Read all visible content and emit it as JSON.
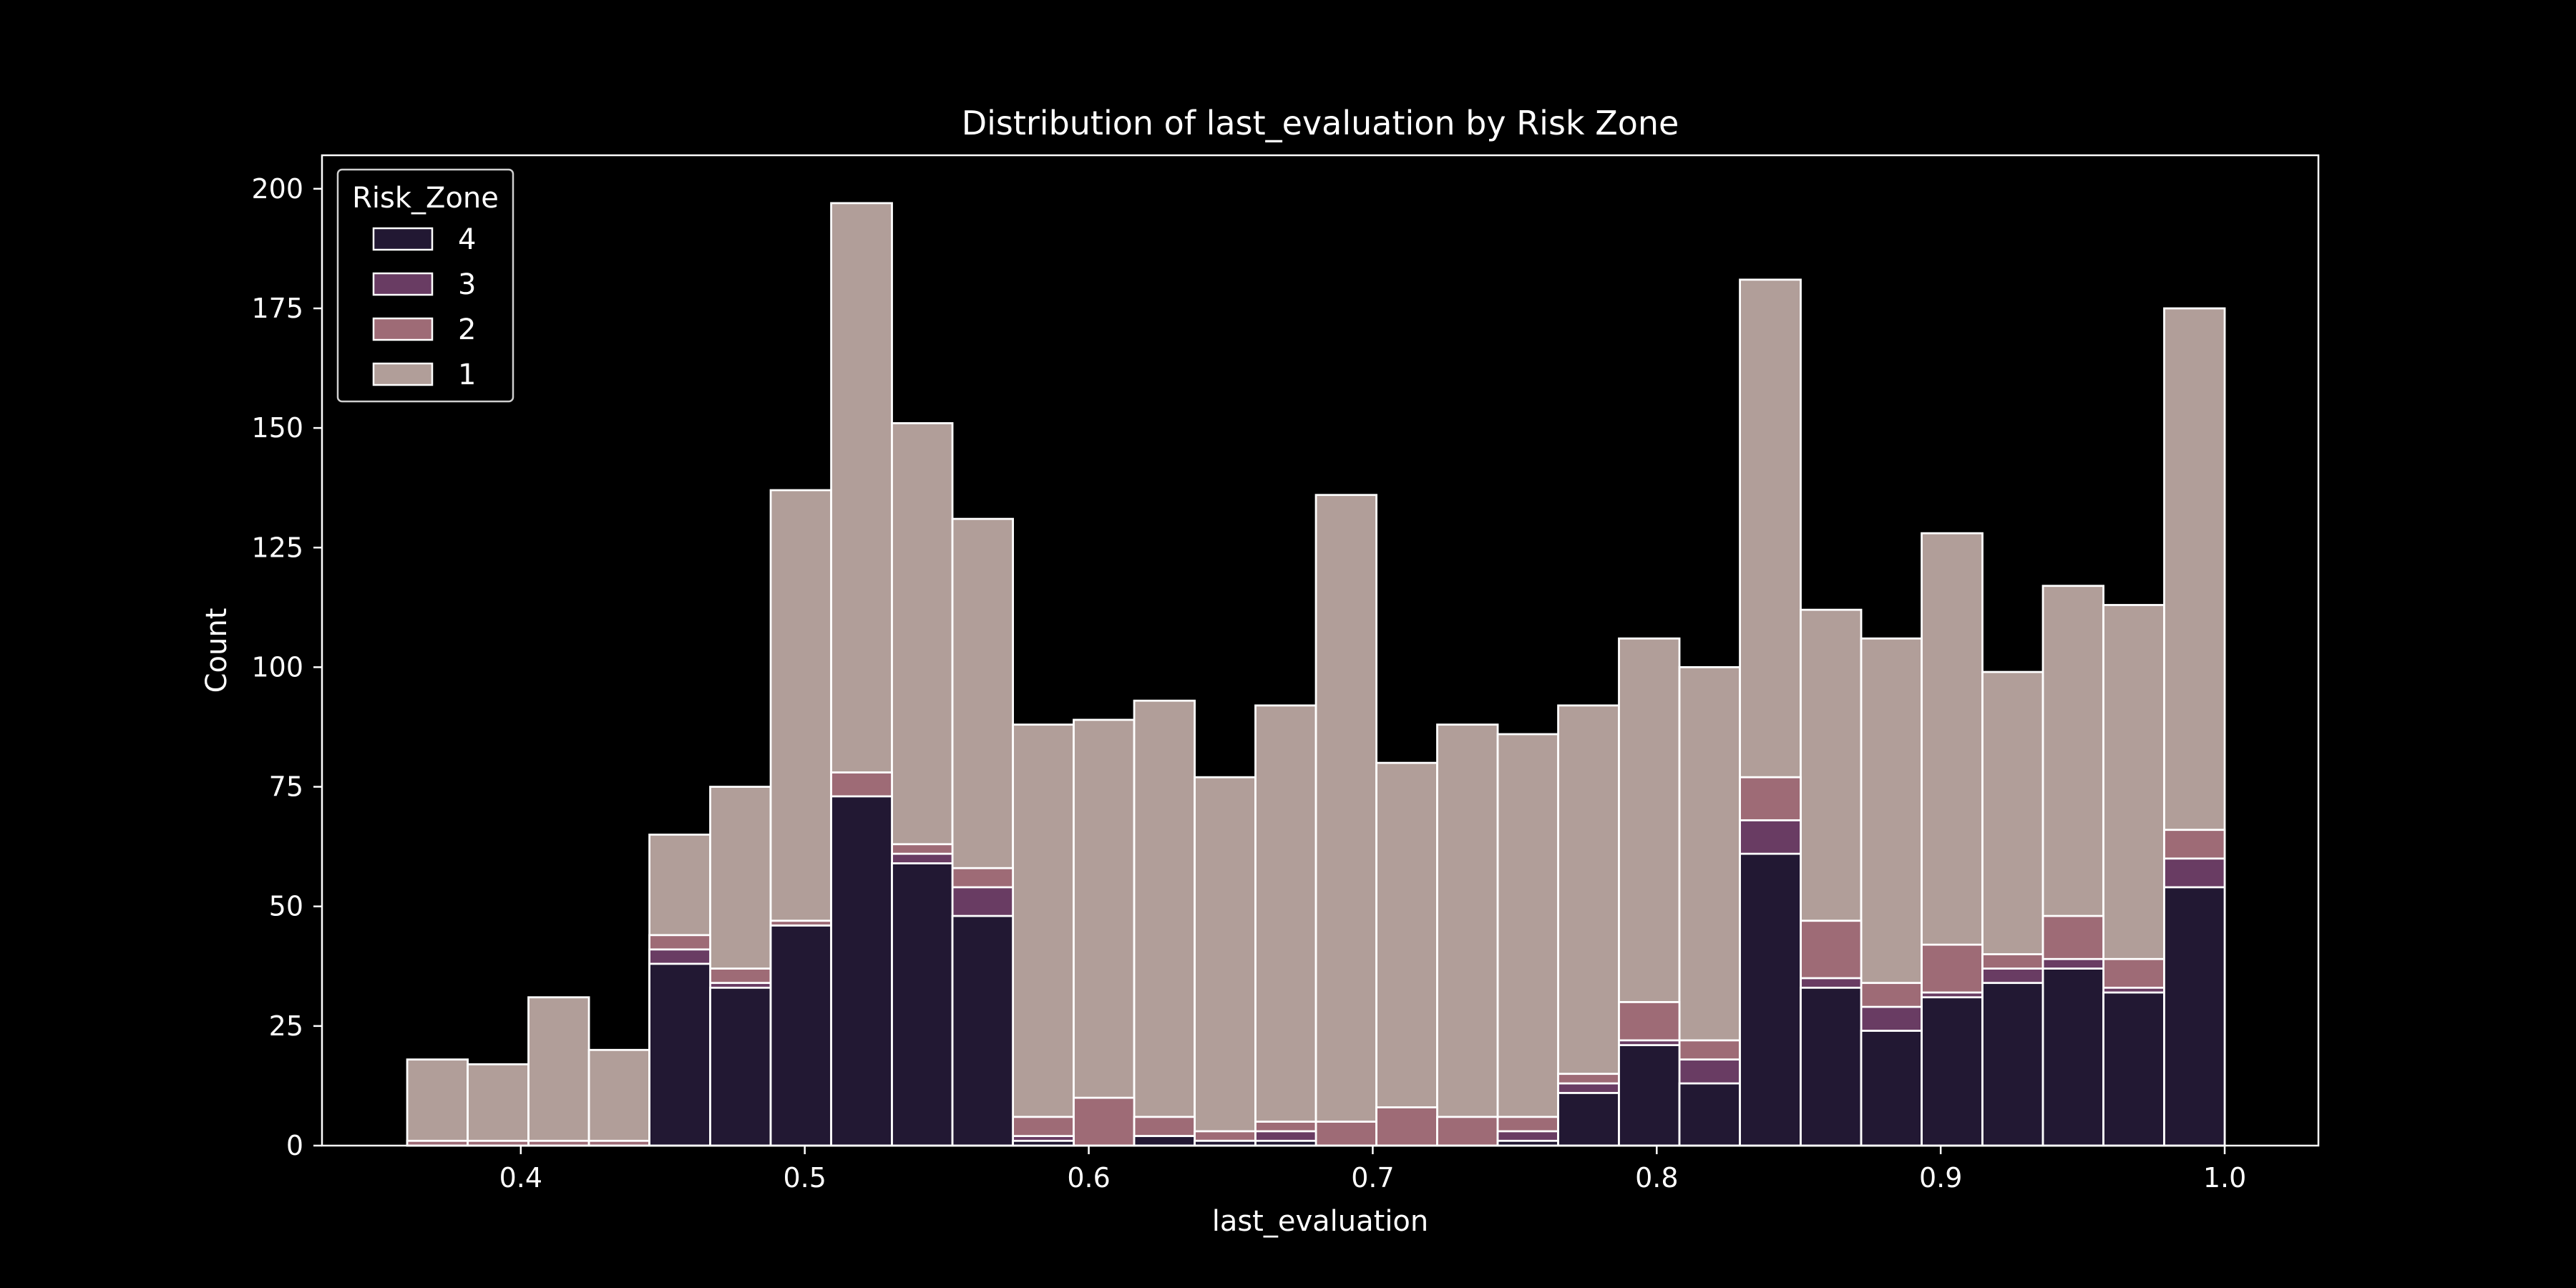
{
  "chart_data": {
    "type": "bar",
    "stacked": true,
    "title": "Distribution of last_evaluation by Risk Zone",
    "xlabel": "last_evaluation",
    "ylabel": "Count",
    "xlim": [
      0.33,
      1.033
    ],
    "ylim": [
      0,
      207
    ],
    "xticks": [
      0.4,
      0.5,
      0.6,
      0.7,
      0.8,
      0.9,
      1.0
    ],
    "xtick_labels": [
      "0.4",
      "0.5",
      "0.6",
      "0.7",
      "0.8",
      "0.9",
      "1.0"
    ],
    "yticks": [
      0,
      25,
      50,
      75,
      100,
      125,
      150,
      175,
      200
    ],
    "ytick_labels": [
      "0",
      "25",
      "50",
      "75",
      "100",
      "125",
      "150",
      "175",
      "200"
    ],
    "grid": false,
    "legend": {
      "title": "Risk_Zone",
      "position": "top-left"
    },
    "bin_edges": [
      0.36,
      0.3813,
      0.4027,
      0.424,
      0.4453,
      0.4667,
      0.488,
      0.5093,
      0.5307,
      0.552,
      0.5733,
      0.5947,
      0.616,
      0.6373,
      0.6587,
      0.68,
      0.7013,
      0.7227,
      0.744,
      0.7653,
      0.7867,
      0.808,
      0.8293,
      0.8507,
      0.872,
      0.8933,
      0.9147,
      0.936,
      0.9573,
      0.9787,
      1.0
    ],
    "series": [
      {
        "name": "4",
        "color": "#221833",
        "values": [
          0,
          0,
          0,
          0,
          38,
          33,
          46,
          73,
          59,
          48,
          1,
          0,
          2,
          1,
          1,
          0,
          0,
          0,
          1,
          11,
          21,
          13,
          61,
          33,
          24,
          31,
          34,
          37,
          32,
          54
        ]
      },
      {
        "name": "3",
        "color": "#693c63",
        "values": [
          0,
          0,
          0,
          0,
          3,
          1,
          0,
          0,
          2,
          6,
          1,
          0,
          0,
          0,
          2,
          0,
          0,
          0,
          2,
          2,
          1,
          5,
          7,
          2,
          5,
          1,
          3,
          2,
          1,
          6
        ]
      },
      {
        "name": "2",
        "color": "#9e6b76",
        "values": [
          1,
          1,
          1,
          1,
          3,
          3,
          1,
          5,
          2,
          4,
          4,
          10,
          4,
          2,
          2,
          5,
          8,
          6,
          3,
          2,
          8,
          4,
          9,
          12,
          5,
          10,
          3,
          9,
          6,
          6
        ]
      },
      {
        "name": "1",
        "color": "#b19e99",
        "values": [
          17,
          16,
          30,
          19,
          21,
          38,
          90,
          119,
          88,
          73,
          82,
          79,
          87,
          74,
          87,
          131,
          72,
          82,
          80,
          77,
          76,
          78,
          104,
          65,
          72,
          86,
          59,
          69,
          74,
          109
        ]
      }
    ]
  }
}
